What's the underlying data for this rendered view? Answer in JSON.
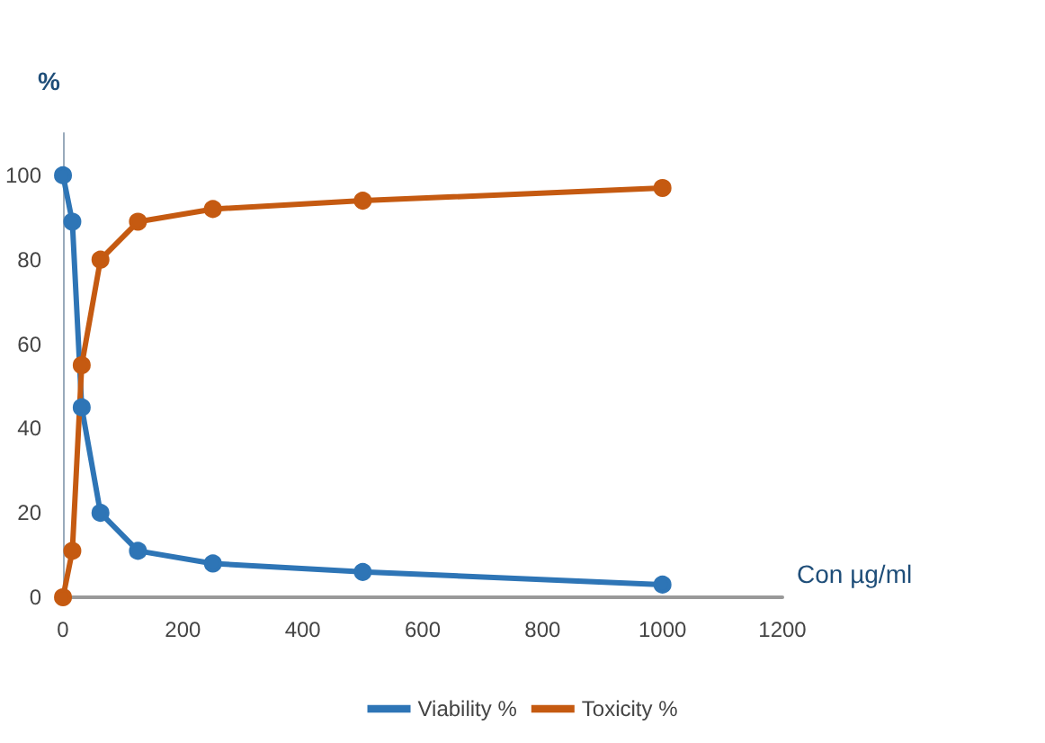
{
  "chart_data": {
    "type": "line",
    "xlabel": "Con µg/ml",
    "ylabel": "%",
    "x": [
      0,
      15.6,
      31.25,
      62.5,
      125,
      250,
      500,
      1000
    ],
    "series": [
      {
        "name": "Viability %",
        "color": "#2e75b6",
        "values": [
          100,
          89,
          45,
          20,
          11,
          8,
          6,
          3
        ]
      },
      {
        "name": "Toxicity %",
        "color": "#c55a11",
        "values": [
          0,
          11,
          55,
          80,
          89,
          92,
          94,
          97
        ]
      }
    ],
    "xlim": [
      0,
      1200
    ],
    "xticks": [
      0,
      200,
      400,
      600,
      800,
      1000,
      1200
    ],
    "ylim": [
      0,
      110
    ],
    "yticks": [
      0,
      20,
      40,
      60,
      80,
      100
    ],
    "grid": false,
    "legend": "bottom",
    "marker": "circle",
    "line_style": "solid"
  }
}
